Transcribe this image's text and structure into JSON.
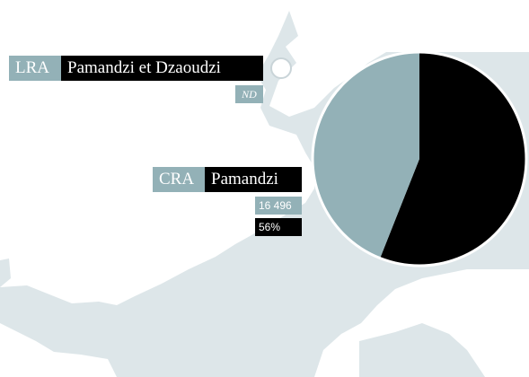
{
  "lra": {
    "tag": "LRA",
    "name": "Pamandzi et Dzaoudzi",
    "value": "ND"
  },
  "cra": {
    "tag": "CRA",
    "name": "Pamandzi",
    "value": "16 496"
  },
  "chart_data": {
    "type": "pie",
    "values": [
      56,
      44
    ],
    "value_labels": [
      "56%",
      null
    ],
    "colors": [
      "#000000",
      "#93b1b7"
    ]
  }
}
